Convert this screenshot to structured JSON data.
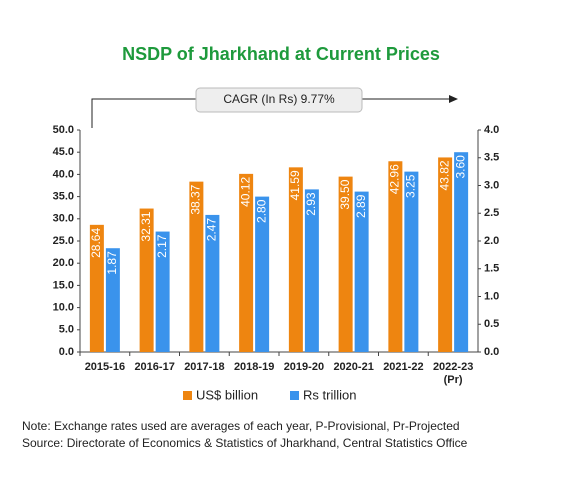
{
  "chart_data": {
    "type": "bar",
    "title": "NSDP of Jharkhand at Current Prices",
    "annotation": "CAGR (In Rs) 9.77%",
    "categories": [
      "2015-16",
      "2016-17",
      "2017-18",
      "2018-19",
      "2019-20",
      "2020-21",
      "2021-22",
      "2022-23 (Pr)"
    ],
    "series": [
      {
        "name": "US$ billion",
        "color": "#ee8510",
        "values": [
          28.64,
          32.31,
          38.37,
          40.12,
          41.59,
          39.5,
          42.96,
          43.82
        ],
        "value_labels": [
          "28.64",
          "32.31",
          "38.37",
          "40.12",
          "41.59",
          "39.50",
          "42.96",
          "43.82"
        ]
      },
      {
        "name": "Rs trillion",
        "color": "#3a93ec",
        "axis": "y2",
        "values": [
          1.87,
          2.17,
          2.47,
          2.8,
          2.93,
          2.89,
          3.25,
          3.6
        ],
        "value_labels": [
          "1.87",
          "2.17",
          "2.47",
          "2.80",
          "2.93",
          "2.89",
          "3.25",
          "3.60"
        ]
      }
    ],
    "ylim": [
      0,
      50
    ],
    "yticks": [
      {
        "value": 0,
        "label": "0.0"
      },
      {
        "value": 5,
        "label": "5.0"
      },
      {
        "value": 10,
        "label": "10.0"
      },
      {
        "value": 15,
        "label": "15.0"
      },
      {
        "value": 20,
        "label": "20.0"
      },
      {
        "value": 25,
        "label": "25.0"
      },
      {
        "value": 30,
        "label": "30.0"
      },
      {
        "value": 35,
        "label": "35.0"
      },
      {
        "value": 40,
        "label": "40.0"
      },
      {
        "value": 45,
        "label": "45.0"
      },
      {
        "value": 50,
        "label": "50.0"
      }
    ],
    "y2lim": [
      0,
      4
    ],
    "y2ticks": [
      {
        "value": 0,
        "label": "0.0"
      },
      {
        "value": 0.5,
        "label": "0.5"
      },
      {
        "value": 1,
        "label": "1.0"
      },
      {
        "value": 1.5,
        "label": "1.5"
      },
      {
        "value": 2,
        "label": "2.0"
      },
      {
        "value": 2.5,
        "label": "2.5"
      },
      {
        "value": 3,
        "label": "3.0"
      },
      {
        "value": 3.5,
        "label": "3.5"
      },
      {
        "value": 4,
        "label": "4.0"
      }
    ],
    "notes": [
      "Note: Exchange rates used are averages of each year, P-Provisional, Pr-Projected",
      "Source: Directorate of Economics & Statistics of Jharkhand, Central Statistics Office"
    ]
  }
}
